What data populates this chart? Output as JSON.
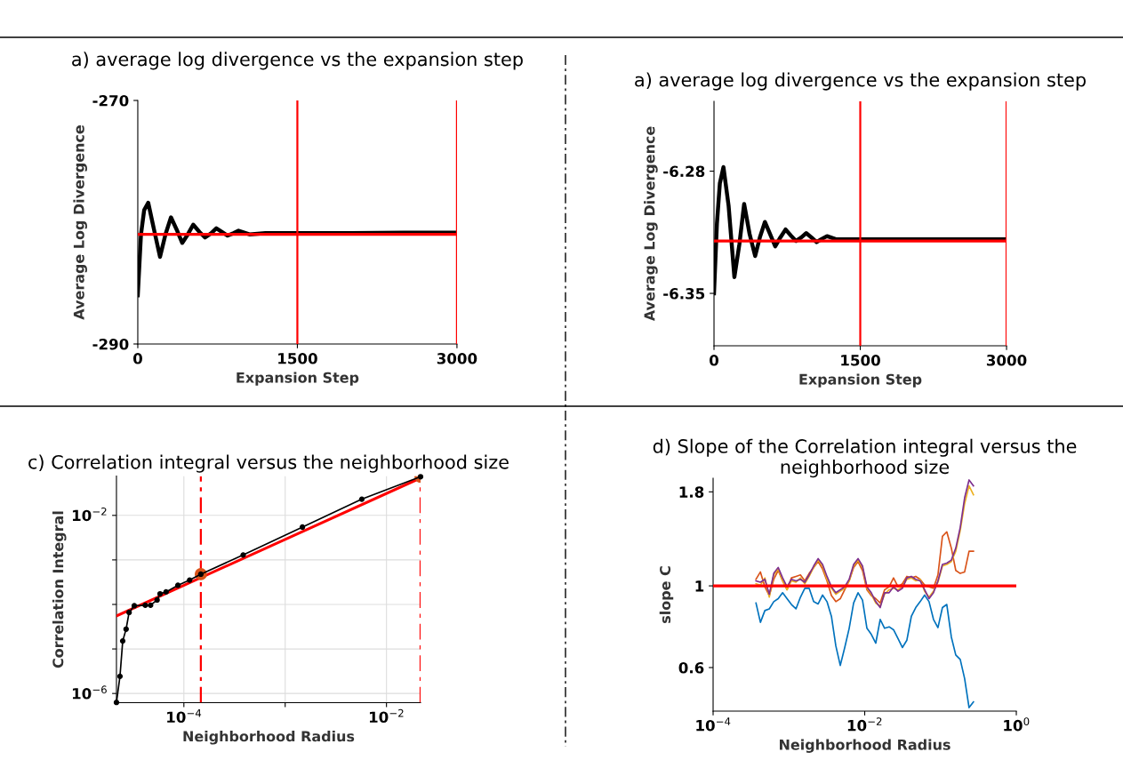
{
  "chart_data": [
    {
      "type": "line",
      "title": "a) average log divergence vs the expansion step",
      "xlabel": "Expansion Step",
      "ylabel": "Average Log Divergence",
      "color": "#000000",
      "x": [
        0,
        30,
        60,
        98,
        150,
        209,
        260,
        312,
        365,
        418,
        470,
        521,
        580,
        632,
        690,
        738,
        790,
        844,
        900,
        947,
        1050,
        1200,
        1500,
        2000,
        2500,
        3000
      ],
      "values": [
        -286,
        -281,
        -279,
        -278.4,
        -280.5,
        -282.85,
        -281,
        -279.6,
        -280.6,
        -281.7,
        -281,
        -280.2,
        -280.8,
        -281.25,
        -280.9,
        -280.5,
        -280.8,
        -281.1,
        -280.9,
        -280.7,
        -281,
        -280.9,
        -280.9,
        -280.9,
        -280.85,
        -280.85
      ],
      "xlim": [
        0,
        3000
      ],
      "ylim": [
        -290,
        -270
      ],
      "xticks": [
        0,
        1500,
        3000
      ],
      "yticks": [
        -290,
        -270
      ],
      "grid": false,
      "ref_lines": [
        {
          "axis": "x",
          "value": 1500,
          "color": "#ff0000"
        },
        {
          "axis": "x",
          "value": 3000,
          "color": "#ff0000"
        },
        {
          "axis": "y",
          "value": -281,
          "color": "#ff0000"
        }
      ]
    },
    {
      "type": "line",
      "title": "a) average log divergence vs the expansion step",
      "xlabel": "Expansion Step",
      "ylabel": "Average Log Divergence",
      "color": "#000000",
      "x": [
        0,
        30,
        60,
        97,
        150,
        209,
        260,
        309,
        365,
        422,
        470,
        522,
        575,
        628,
        680,
        734,
        790,
        840,
        895,
        946,
        1000,
        1052,
        1100,
        1159,
        1250,
        1371,
        1500,
        2000,
        2500,
        3000
      ],
      "values": [
        -6.35,
        -6.31,
        -6.287,
        -6.2777,
        -6.3,
        -6.3407,
        -6.322,
        -6.2988,
        -6.316,
        -6.3286,
        -6.318,
        -6.3091,
        -6.316,
        -6.3231,
        -6.318,
        -6.3134,
        -6.317,
        -6.32,
        -6.318,
        -6.3155,
        -6.318,
        -6.3207,
        -6.319,
        -6.3172,
        -6.319,
        -6.319,
        -6.319,
        -6.319,
        -6.319,
        -6.319
      ],
      "xlim": [
        0,
        3000
      ],
      "ylim": [
        -6.38,
        -6.24
      ],
      "xticks": [
        0,
        1500,
        3000
      ],
      "yticks": [
        -6.35,
        -6.28
      ],
      "grid": false,
      "ref_lines": [
        {
          "axis": "x",
          "value": 1500,
          "color": "#ff0000"
        },
        {
          "axis": "x",
          "value": 3000,
          "color": "#ff0000"
        },
        {
          "axis": "y",
          "value": -6.32,
          "color": "#ff0000"
        }
      ]
    },
    {
      "type": "line",
      "title": "c) Correlation integral versus the neighborhood size",
      "xlabel": "Neighborhood Radius",
      "ylabel": "Correlation Integral",
      "log": "xy",
      "grid": true,
      "series": [
        {
          "type": "line",
          "color": "#000000",
          "marker": "circle",
          "x": [
            2.16e-05,
            2.34e-05,
            2.49e-05,
            2.69e-05,
            2.88e-05,
            3.24e-05,
            4.16e-05,
            4.69e-05,
            5.44e-05,
            5.82e-05,
            6.67e-05,
            8.73e-05,
            0.000114,
            0.000147,
            0.000385,
            0.00148,
            0.00571,
            0.0217
          ],
          "values": [
            6.3e-07,
            2.43e-06,
            1.51e-05,
            2.79e-05,
            6.62e-05,
            9.33e-05,
            9.59e-05,
            9.59e-05,
            0.000126,
            0.000173,
            0.000191,
            0.000269,
            0.000352,
            0.000478,
            0.00129,
            0.00546,
            0.0231,
            0.0738
          ]
        },
        {
          "type": "line",
          "color": "#ff0000",
          "x": [
            2.16e-05,
            0.0217
          ],
          "values": [
            5.53e-05,
            0.069
          ]
        },
        {
          "type": "scatter",
          "color": "#d95319",
          "x": [
            0.000147,
            0.0217
          ],
          "values": [
            0.000478,
            0.0738
          ]
        }
      ],
      "xlim": [
        2.16e-05,
        0.0217
      ],
      "ylim": [
        6.2e-07,
        0.076
      ],
      "xticks": [
        {
          "value": 0.0001,
          "label": "10$^{−4}$"
        },
        {
          "value": 0.001,
          "label": null
        },
        {
          "value": 0.01,
          "label": "10$^{−2}$"
        }
      ],
      "yticks": [
        {
          "value": 1e-06,
          "label": "10$^{−6}$"
        },
        {
          "value": 1e-05,
          "label": null
        },
        {
          "value": 0.0001,
          "label": null
        },
        {
          "value": 0.001,
          "label": null
        },
        {
          "value": 0.01,
          "label": "10$^{−2}$"
        }
      ],
      "ref_lines": [
        {
          "axis": "x",
          "value": 0.000147,
          "color": "#ff0000",
          "line_style": "dashed"
        },
        {
          "axis": "x",
          "value": 0.0217,
          "color": "#ff0000",
          "line_style": "dashed"
        }
      ]
    },
    {
      "type": "line",
      "title": "d) Slope of the Correlation integral versus the neighborhood size",
      "xlabel": "Neighborhood Radius",
      "ylabel": "slope C",
      "log": "xy",
      "grid": false,
      "x": [
        0.000368,
        0.000421,
        0.000482,
        0.000551,
        0.000631,
        0.000722,
        0.000826,
        0.000945,
        0.00108,
        0.00124,
        0.00142,
        0.00162,
        0.00185,
        0.00212,
        0.00243,
        0.00278,
        0.00318,
        0.00364,
        0.00416,
        0.00476,
        0.00545,
        0.00624,
        0.00714,
        0.00817,
        0.00935,
        0.0107,
        0.0122,
        0.014,
        0.016,
        0.0183,
        0.021,
        0.024,
        0.0275,
        0.0314,
        0.036,
        0.0412,
        0.0471,
        0.0539,
        0.0617,
        0.0706,
        0.0808,
        0.0925,
        0.106,
        0.121,
        0.139,
        0.159,
        0.182,
        0.208,
        0.238,
        0.272
      ],
      "series": [
        {
          "color": "#0072bd",
          "values": [
            0.898,
            0.796,
            0.857,
            0.866,
            0.906,
            0.923,
            0.958,
            0.923,
            0.89,
            0.866,
            0.932,
            0.985,
            0.985,
            0.906,
            0.893,
            0.944,
            0.906,
            0.826,
            0.687,
            0.608,
            0.68,
            0.767,
            0.898,
            0.958,
            0.915,
            0.767,
            0.739,
            0.699,
            0.811,
            0.767,
            0.774,
            0.76,
            0.719,
            0.68,
            0.712,
            0.826,
            0.873,
            0.906,
            0.944,
            0.906,
            0.811,
            0.77,
            0.873,
            0.89,
            0.726,
            0.649,
            0.631,
            0.56,
            0.467,
            0.484
          ]
        },
        {
          "color": "#d95319",
          "values": [
            1.042,
            1.091,
            0.994,
            0.941,
            1.042,
            1.101,
            1.032,
            0.976,
            1.051,
            1.061,
            1.071,
            1.032,
            1.081,
            1.122,
            1.164,
            1.111,
            1.032,
            0.941,
            0.906,
            0.923,
            0.976,
            1.032,
            1.122,
            1.164,
            1.101,
            0.976,
            0.941,
            0.923,
            0.898,
            0.976,
            0.994,
            1.051,
            0.994,
            1.013,
            1.061,
            1.051,
            1.061,
            1.042,
            1.004,
            0.994,
            0.985,
            1.071,
            1.363,
            1.402,
            1.266,
            1.101,
            1.081,
            1.091,
            1.242,
            1.242
          ]
        },
        {
          "color": "#edb120",
          "values": [
            1.013,
            1.004,
            1.051,
            0.932,
            1.071,
            1.111,
            1.032,
            0.976,
            1.032,
            1.023,
            1.051,
            1.013,
            1.061,
            1.122,
            1.175,
            1.132,
            1.042,
            0.985,
            0.949,
            0.967,
            0.985,
            1.032,
            1.132,
            1.175,
            1.122,
            0.985,
            0.949,
            0.898,
            0.882,
            0.949,
            0.976,
            0.985,
            0.976,
            0.994,
            1.042,
            1.051,
            1.032,
            1.042,
            0.967,
            0.932,
            0.967,
            1.023,
            1.132,
            1.143,
            1.164,
            1.242,
            1.414,
            1.671,
            1.868,
            1.767
          ]
        },
        {
          "color": "#7e2f8e",
          "values": [
            1.032,
            1.023,
            1.042,
            0.949,
            1.081,
            1.122,
            1.051,
            0.994,
            1.042,
            1.032,
            1.042,
            1.023,
            1.071,
            1.132,
            1.186,
            1.143,
            1.061,
            0.994,
            0.958,
            0.976,
            0.994,
            1.042,
            1.143,
            1.186,
            1.132,
            0.994,
            0.958,
            0.906,
            0.873,
            0.958,
            0.958,
            0.994,
            0.967,
            0.985,
            1.051,
            1.061,
            1.042,
            1.032,
            0.976,
            0.923,
            0.958,
            1.032,
            1.143,
            1.153,
            1.175,
            1.266,
            1.441,
            1.734,
            1.939,
            1.868
          ]
        }
      ],
      "xlim": [
        0.0001,
        1
      ],
      "ylim": [
        0.457,
        1.96
      ],
      "xticks": [
        {
          "value": 0.0001,
          "label": "10$^{−4}$"
        },
        {
          "value": 0.01,
          "label": "10$^{−2}$"
        },
        {
          "value": 1,
          "label": "10$^{0}$"
        }
      ],
      "yticks": [
        0.6,
        1,
        1.8
      ],
      "ref_lines": [
        {
          "axis": "y",
          "value": 1,
          "color": "#ff0000"
        }
      ]
    }
  ]
}
